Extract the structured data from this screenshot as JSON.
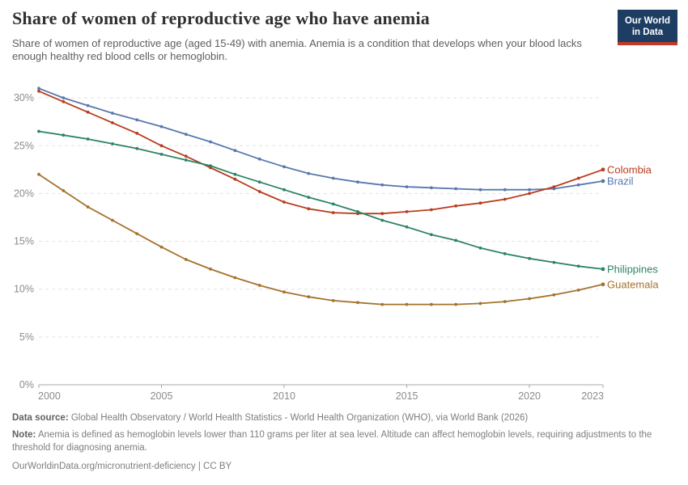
{
  "header": {
    "title": "Share of women of reproductive age who have anemia",
    "subtitle": "Share of women of reproductive age (aged 15-49) with anemia. Anemia is a condition that develops when your blood lacks enough healthy red blood cells or hemoglobin.",
    "logo": {
      "line1": "Our World",
      "line2": "in Data",
      "bg_color": "#1d3d63",
      "stripe_color": "#c0392b"
    }
  },
  "chart_data": {
    "type": "line",
    "title": "Share of women of reproductive age who have anemia",
    "xlabel": "",
    "ylabel": "",
    "x": [
      2000,
      2001,
      2002,
      2003,
      2004,
      2005,
      2006,
      2007,
      2008,
      2009,
      2010,
      2011,
      2012,
      2013,
      2014,
      2015,
      2016,
      2017,
      2018,
      2019,
      2020,
      2021,
      2022,
      2023
    ],
    "series": [
      {
        "name": "Brazil",
        "color": "#5878ae",
        "values": [
          31.0,
          30.0,
          29.2,
          28.4,
          27.7,
          27.0,
          26.2,
          25.4,
          24.5,
          23.6,
          22.8,
          22.1,
          21.6,
          21.2,
          20.9,
          20.7,
          20.6,
          20.5,
          20.4,
          20.4,
          20.4,
          20.5,
          20.9,
          21.3
        ]
      },
      {
        "name": "Colombia",
        "color": "#b83d1e",
        "values": [
          30.7,
          29.6,
          28.5,
          27.4,
          26.3,
          25.0,
          23.9,
          22.7,
          21.5,
          20.2,
          19.1,
          18.4,
          18.0,
          17.9,
          17.9,
          18.1,
          18.3,
          18.7,
          19.0,
          19.4,
          20.0,
          20.7,
          21.6,
          22.5
        ]
      },
      {
        "name": "Guatemala",
        "color": "#a5722c",
        "values": [
          22.0,
          20.3,
          18.6,
          17.2,
          15.8,
          14.4,
          13.1,
          12.1,
          11.2,
          10.4,
          9.7,
          9.2,
          8.8,
          8.6,
          8.4,
          8.4,
          8.4,
          8.4,
          8.5,
          8.7,
          9.0,
          9.4,
          9.9,
          10.5
        ]
      },
      {
        "name": "Philippines",
        "color": "#2c8465",
        "values": [
          26.5,
          26.1,
          25.7,
          25.2,
          24.7,
          24.1,
          23.5,
          22.9,
          22.0,
          21.2,
          20.4,
          19.6,
          18.9,
          18.1,
          17.2,
          16.5,
          15.7,
          15.1,
          14.3,
          13.7,
          13.2,
          12.8,
          12.4,
          12.1
        ]
      }
    ],
    "xticks": [
      2000,
      2005,
      2010,
      2015,
      2020,
      2023
    ],
    "yticks": [
      0,
      5,
      10,
      15,
      20,
      25,
      30
    ],
    "ytick_suffix": "%",
    "xlim": [
      2000,
      2023
    ],
    "ylim": [
      0,
      31.5
    ],
    "grid": "horizontal-dashed",
    "legend_position": "end-of-line-labels",
    "axis_color": "#a8a8a8",
    "grid_color": "#e3e3e3"
  },
  "footer": {
    "datasource_label": "Data source:",
    "datasource_text": " Global Health Observatory / World Health Statistics - World Health Organization (WHO), via World Bank (2026)",
    "note_label": "Note:",
    "note_text": " Anemia is defined as hemoglobin levels lower than 110 grams per liter at sea level. Altitude can affect hemoglobin levels, requiring adjustments to the threshold for diagnosing anemia.",
    "citation": "OurWorldinData.org/micronutrient-deficiency | CC BY"
  }
}
